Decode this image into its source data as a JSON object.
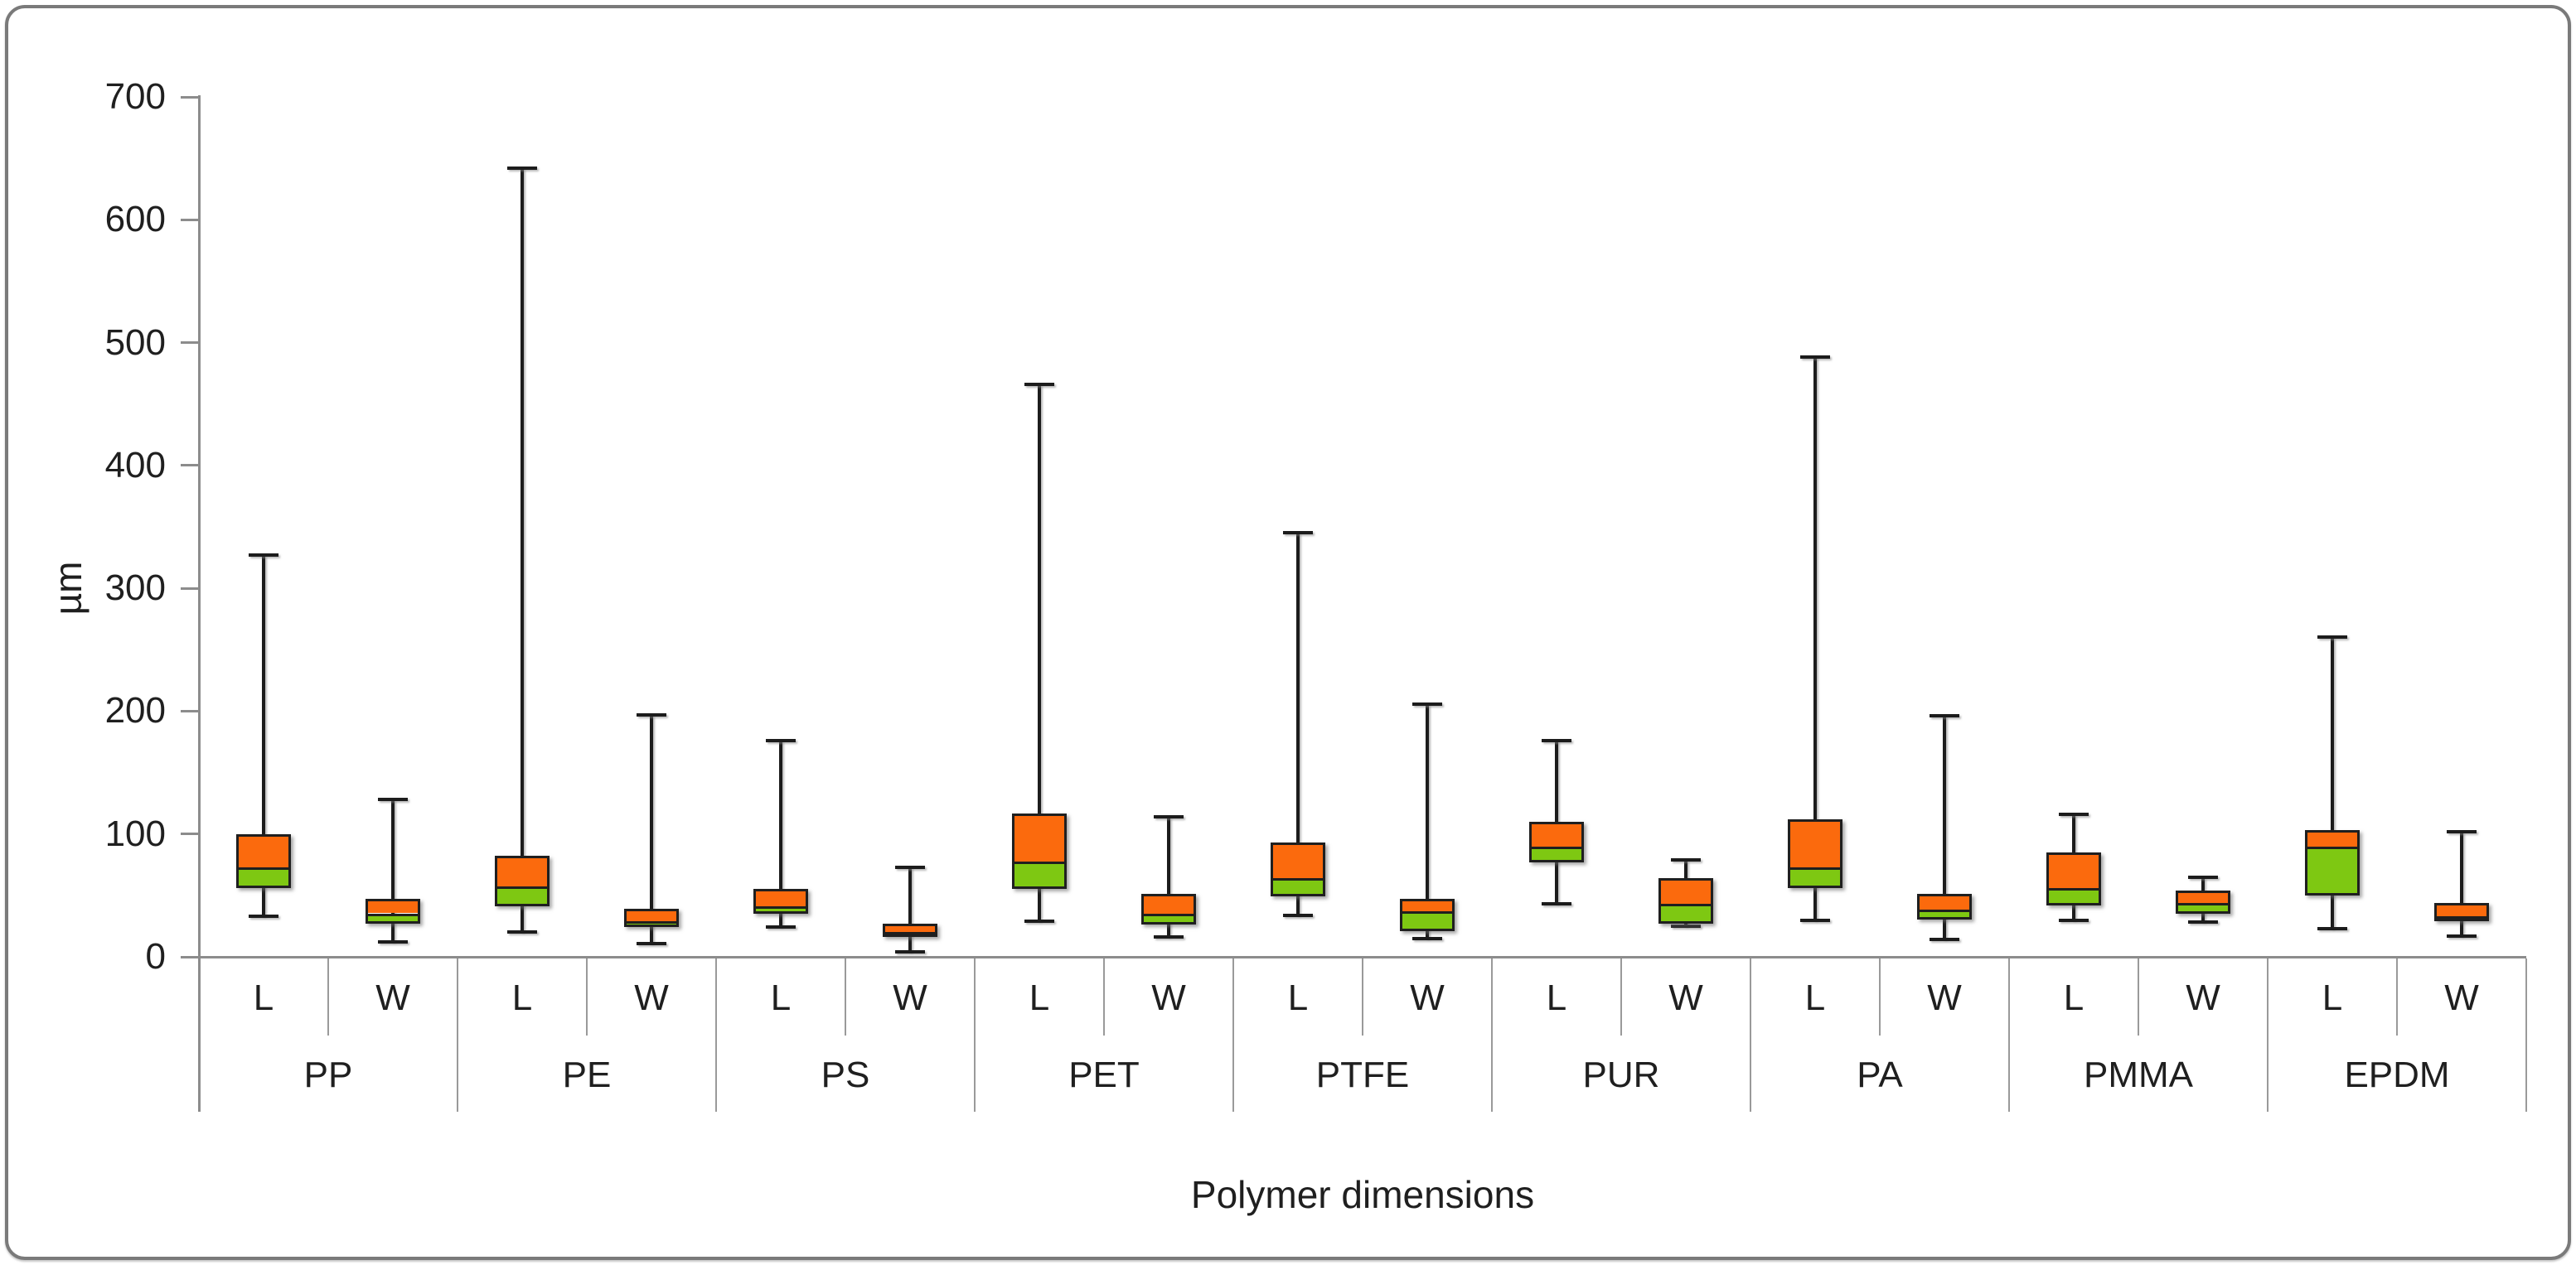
{
  "chart_data": {
    "type": "boxplot",
    "title": "",
    "xlabel": "Polymer dimensions",
    "ylabel": "µm",
    "ylim": [
      0,
      700
    ],
    "yticks": [
      0,
      100,
      200,
      300,
      400,
      500,
      600,
      700
    ],
    "grid": false,
    "legend": false,
    "sub_categories": [
      "L",
      "W"
    ],
    "units": "µm",
    "colors": {
      "upper_box": "#fb6a0d",
      "lower_box": "#7ec812",
      "whisker": "#1c1c1c",
      "axis": "#8c8c8c",
      "text": "#1f1f1f"
    },
    "groups": [
      {
        "name": "PP",
        "L": {
          "min": 33,
          "q1": 56,
          "med": 72,
          "q3": 100,
          "max": 327
        },
        "W": {
          "min": 12,
          "q1": 27,
          "med": 35,
          "q3": 47,
          "max": 128
        }
      },
      {
        "name": "PE",
        "L": {
          "min": 20,
          "q1": 41,
          "med": 57,
          "q3": 82,
          "max": 642
        },
        "W": {
          "min": 11,
          "q1": 24,
          "med": 28,
          "q3": 39,
          "max": 197
        }
      },
      {
        "name": "PS",
        "L": {
          "min": 24,
          "q1": 35,
          "med": 40,
          "q3": 55,
          "max": 176
        },
        "W": {
          "min": 4,
          "q1": 16,
          "med": 18,
          "q3": 27,
          "max": 73
        }
      },
      {
        "name": "PET",
        "L": {
          "min": 29,
          "q1": 55,
          "med": 77,
          "q3": 117,
          "max": 466
        },
        "W": {
          "min": 16,
          "q1": 26,
          "med": 34,
          "q3": 51,
          "max": 114
        }
      },
      {
        "name": "PTFE",
        "L": {
          "min": 34,
          "q1": 49,
          "med": 63,
          "q3": 93,
          "max": 345
        },
        "W": {
          "min": 15,
          "q1": 21,
          "med": 38,
          "q3": 47,
          "max": 206
        }
      },
      {
        "name": "PUR",
        "L": {
          "min": 43,
          "q1": 77,
          "med": 89,
          "q3": 110,
          "max": 176
        },
        "W": {
          "min": 25,
          "q1": 27,
          "med": 43,
          "q3": 64,
          "max": 79
        }
      },
      {
        "name": "PA",
        "L": {
          "min": 30,
          "q1": 56,
          "med": 72,
          "q3": 112,
          "max": 488
        },
        "W": {
          "min": 14,
          "q1": 30,
          "med": 38,
          "q3": 51,
          "max": 196
        }
      },
      {
        "name": "PMMA",
        "L": {
          "min": 30,
          "q1": 42,
          "med": 55,
          "q3": 85,
          "max": 116
        },
        "W": {
          "min": 28,
          "q1": 35,
          "med": 44,
          "q3": 54,
          "max": 65
        }
      },
      {
        "name": "EPDM",
        "L": {
          "min": 23,
          "q1": 50,
          "med": 91,
          "q3": 103,
          "max": 260
        },
        "W": {
          "min": 17,
          "q1": 29,
          "med": 31,
          "q3": 44,
          "max": 102
        }
      }
    ]
  }
}
